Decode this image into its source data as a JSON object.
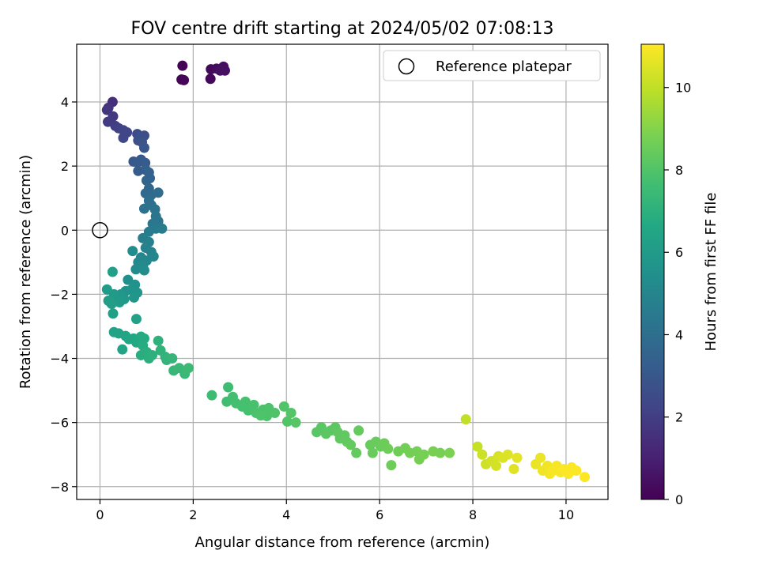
{
  "chart_data": {
    "type": "scatter",
    "title": "FOV centre drift starting at 2024/05/02 07:08:13",
    "xlabel": "Angular distance from reference (arcmin)",
    "ylabel": "Rotation from reference (arcmin)",
    "xlim": [
      -0.5,
      10.9
    ],
    "ylim": [
      -8.4,
      5.8
    ],
    "xticks": [
      0,
      2,
      4,
      6,
      8,
      10
    ],
    "yticks": [
      -8,
      -6,
      -4,
      -2,
      0,
      2,
      4
    ],
    "xtick_labels": [
      "0",
      "2",
      "4",
      "6",
      "8",
      "10"
    ],
    "ytick_labels": [
      "−8",
      "−6",
      "−4",
      "−2",
      "0",
      "2",
      "4"
    ],
    "grid": true,
    "legend": {
      "placement": "upper right",
      "entries": [
        "Reference platepar"
      ]
    },
    "colorbar": {
      "label": "Hours from first FF file",
      "range": [
        0,
        11.05
      ],
      "colormap": "viridis",
      "ticks": [
        0,
        2,
        4,
        6,
        8,
        10
      ],
      "tick_labels": [
        "0",
        "2",
        "4",
        "6",
        "8",
        "10"
      ]
    },
    "reference_point": {
      "name": "Reference platepar",
      "x": 0,
      "y": 0
    },
    "points": [
      [
        1.77,
        5.13,
        0.05
      ],
      [
        1.75,
        4.7,
        0.1
      ],
      [
        1.8,
        4.68,
        0.15
      ],
      [
        2.37,
        4.72,
        0.2
      ],
      [
        2.38,
        5.02,
        0.25
      ],
      [
        2.5,
        5.04,
        0.3
      ],
      [
        2.62,
        5.02,
        0.35
      ],
      [
        2.65,
        5.1,
        0.4
      ],
      [
        2.68,
        4.98,
        0.45
      ],
      [
        2.58,
        4.98,
        0.5
      ],
      [
        0.27,
        4.0,
        1.5
      ],
      [
        0.18,
        3.82,
        1.6
      ],
      [
        0.15,
        3.75,
        1.7
      ],
      [
        0.28,
        3.55,
        1.8
      ],
      [
        0.17,
        3.38,
        1.9
      ],
      [
        0.33,
        3.25,
        2.0
      ],
      [
        0.4,
        3.18,
        2.1
      ],
      [
        0.5,
        3.12,
        2.2
      ],
      [
        0.58,
        3.05,
        2.3
      ],
      [
        0.5,
        2.88,
        2.35
      ],
      [
        0.8,
        3.0,
        2.5
      ],
      [
        0.88,
        2.92,
        2.6
      ],
      [
        0.95,
        2.95,
        2.65
      ],
      [
        0.82,
        2.8,
        2.7
      ],
      [
        0.9,
        2.75,
        2.8
      ],
      [
        0.95,
        2.57,
        2.9
      ],
      [
        0.72,
        2.14,
        3.0
      ],
      [
        0.8,
        2.12,
        3.05
      ],
      [
        0.88,
        2.2,
        3.1
      ],
      [
        0.97,
        2.1,
        3.15
      ],
      [
        0.82,
        1.85,
        3.2
      ],
      [
        0.98,
        1.88,
        3.3
      ],
      [
        1.05,
        1.8,
        3.4
      ],
      [
        1.07,
        1.62,
        3.5
      ],
      [
        1.0,
        1.55,
        3.6
      ],
      [
        1.05,
        1.3,
        3.65
      ],
      [
        0.98,
        1.15,
        3.7
      ],
      [
        1.1,
        1.1,
        3.8
      ],
      [
        1.25,
        1.17,
        3.9
      ],
      [
        1.05,
        0.92,
        4.0
      ],
      [
        1.1,
        0.78,
        4.05
      ],
      [
        0.95,
        0.67,
        4.1
      ],
      [
        1.18,
        0.65,
        4.2
      ],
      [
        1.2,
        0.43,
        4.3
      ],
      [
        1.25,
        0.28,
        4.35
      ],
      [
        1.13,
        0.2,
        4.4
      ],
      [
        1.2,
        0.05,
        4.5
      ],
      [
        1.33,
        0.05,
        4.55
      ],
      [
        1.05,
        -0.05,
        4.6
      ],
      [
        0.92,
        -0.25,
        4.7
      ],
      [
        1.05,
        -0.37,
        4.8
      ],
      [
        0.98,
        -0.55,
        4.85
      ],
      [
        1.1,
        -0.68,
        4.9
      ],
      [
        1.15,
        -0.82,
        5.0
      ],
      [
        0.88,
        -0.85,
        5.05
      ],
      [
        1.0,
        -0.95,
        5.1
      ],
      [
        0.82,
        -1.0,
        5.15
      ],
      [
        0.92,
        -1.12,
        5.2
      ],
      [
        0.77,
        -1.22,
        5.25
      ],
      [
        0.7,
        -0.65,
        5.3
      ],
      [
        0.95,
        -1.25,
        5.35
      ],
      [
        0.6,
        -1.55,
        5.5
      ],
      [
        0.75,
        -1.7,
        5.55
      ],
      [
        0.55,
        -1.9,
        5.6
      ],
      [
        0.68,
        -1.85,
        5.65
      ],
      [
        0.8,
        -1.95,
        5.7
      ],
      [
        0.73,
        -2.1,
        5.75
      ],
      [
        0.45,
        -2.0,
        5.8
      ],
      [
        0.52,
        -2.15,
        5.85
      ],
      [
        0.38,
        -2.1,
        5.9
      ],
      [
        0.3,
        -2.0,
        5.95
      ],
      [
        0.42,
        -2.25,
        6.0
      ],
      [
        0.15,
        -1.85,
        6.05
      ],
      [
        0.18,
        -2.2,
        6.1
      ],
      [
        0.25,
        -2.3,
        6.15
      ],
      [
        0.28,
        -2.6,
        6.2
      ],
      [
        0.27,
        -1.3,
        6.25
      ],
      [
        0.78,
        -2.77,
        6.3
      ],
      [
        0.3,
        -3.18,
        6.35
      ],
      [
        0.4,
        -3.22,
        6.4
      ],
      [
        0.48,
        -3.72,
        6.45
      ],
      [
        0.55,
        -3.3,
        6.5
      ],
      [
        0.62,
        -3.4,
        6.55
      ],
      [
        0.72,
        -3.38,
        6.6
      ],
      [
        0.78,
        -3.5,
        6.65
      ],
      [
        0.88,
        -3.32,
        6.7
      ],
      [
        0.95,
        -3.38,
        6.75
      ],
      [
        0.92,
        -3.6,
        6.8
      ],
      [
        0.88,
        -3.9,
        6.85
      ],
      [
        1.0,
        -3.8,
        6.9
      ],
      [
        1.05,
        -4.0,
        6.95
      ],
      [
        1.12,
        -3.9,
        7.0
      ],
      [
        1.25,
        -3.45,
        7.05
      ],
      [
        1.3,
        -3.75,
        7.1
      ],
      [
        1.4,
        -3.95,
        7.15
      ],
      [
        1.43,
        -4.05,
        7.2
      ],
      [
        1.55,
        -4.0,
        7.25
      ],
      [
        1.58,
        -4.38,
        7.3
      ],
      [
        1.7,
        -4.3,
        7.35
      ],
      [
        1.82,
        -4.48,
        7.4
      ],
      [
        1.9,
        -4.3,
        7.45
      ],
      [
        2.4,
        -5.15,
        7.55
      ],
      [
        2.75,
        -4.9,
        7.6
      ],
      [
        2.72,
        -5.35,
        7.65
      ],
      [
        2.85,
        -5.2,
        7.7
      ],
      [
        2.92,
        -5.4,
        7.72
      ],
      [
        3.05,
        -5.5,
        7.75
      ],
      [
        3.12,
        -5.35,
        7.78
      ],
      [
        3.18,
        -5.62,
        7.8
      ],
      [
        3.3,
        -5.45,
        7.82
      ],
      [
        3.35,
        -5.7,
        7.85
      ],
      [
        3.5,
        -5.6,
        7.88
      ],
      [
        3.58,
        -5.8,
        7.9
      ],
      [
        3.62,
        -5.55,
        7.92
      ],
      [
        3.75,
        -5.7,
        7.95
      ],
      [
        3.45,
        -5.78,
        7.97
      ],
      [
        3.95,
        -5.5,
        8.0
      ],
      [
        4.02,
        -5.97,
        8.02
      ],
      [
        4.1,
        -5.7,
        8.05
      ],
      [
        4.2,
        -6.0,
        8.08
      ],
      [
        4.65,
        -6.3,
        8.15
      ],
      [
        4.75,
        -6.15,
        8.18
      ],
      [
        4.85,
        -6.35,
        8.2
      ],
      [
        4.95,
        -6.25,
        8.22
      ],
      [
        5.05,
        -6.15,
        8.25
      ],
      [
        5.1,
        -6.3,
        8.28
      ],
      [
        5.15,
        -6.5,
        8.3
      ],
      [
        5.25,
        -6.4,
        8.32
      ],
      [
        5.3,
        -6.6,
        8.35
      ],
      [
        5.38,
        -6.7,
        8.38
      ],
      [
        5.5,
        -6.95,
        8.4
      ],
      [
        5.55,
        -6.25,
        8.42
      ],
      [
        5.8,
        -6.7,
        8.45
      ],
      [
        5.85,
        -6.95,
        8.48
      ],
      [
        5.92,
        -6.6,
        8.5
      ],
      [
        6.02,
        -6.75,
        8.52
      ],
      [
        6.1,
        -6.65,
        8.55
      ],
      [
        6.18,
        -6.82,
        8.58
      ],
      [
        6.25,
        -7.33,
        8.6
      ],
      [
        6.4,
        -6.9,
        8.62
      ],
      [
        6.55,
        -6.8,
        8.65
      ],
      [
        6.65,
        -6.95,
        8.68
      ],
      [
        6.8,
        -6.9,
        8.7
      ],
      [
        6.85,
        -7.15,
        8.72
      ],
      [
        6.95,
        -7.0,
        8.75
      ],
      [
        7.15,
        -6.9,
        8.78
      ],
      [
        7.3,
        -6.95,
        8.8
      ],
      [
        7.5,
        -6.95,
        8.85
      ],
      [
        7.85,
        -5.9,
        10.0
      ],
      [
        8.1,
        -6.75,
        10.1
      ],
      [
        8.2,
        -7.0,
        10.2
      ],
      [
        8.28,
        -7.3,
        10.25
      ],
      [
        8.4,
        -7.2,
        10.3
      ],
      [
        8.5,
        -7.35,
        10.35
      ],
      [
        8.55,
        -7.05,
        10.4
      ],
      [
        8.65,
        -7.1,
        10.45
      ],
      [
        8.75,
        -7.0,
        10.5
      ],
      [
        8.88,
        -7.45,
        10.55
      ],
      [
        8.95,
        -7.1,
        10.6
      ],
      [
        9.35,
        -7.3,
        10.7
      ],
      [
        9.45,
        -7.1,
        10.75
      ],
      [
        9.5,
        -7.5,
        10.8
      ],
      [
        9.6,
        -7.35,
        10.85
      ],
      [
        9.65,
        -7.6,
        10.9
      ],
      [
        9.72,
        -7.5,
        10.93
      ],
      [
        9.8,
        -7.35,
        10.95
      ],
      [
        9.88,
        -7.55,
        10.97
      ],
      [
        9.95,
        -7.45,
        11.0
      ],
      [
        10.05,
        -7.6,
        11.02
      ],
      [
        10.12,
        -7.4,
        11.03
      ],
      [
        10.22,
        -7.5,
        11.04
      ],
      [
        10.4,
        -7.7,
        11.05
      ]
    ]
  }
}
